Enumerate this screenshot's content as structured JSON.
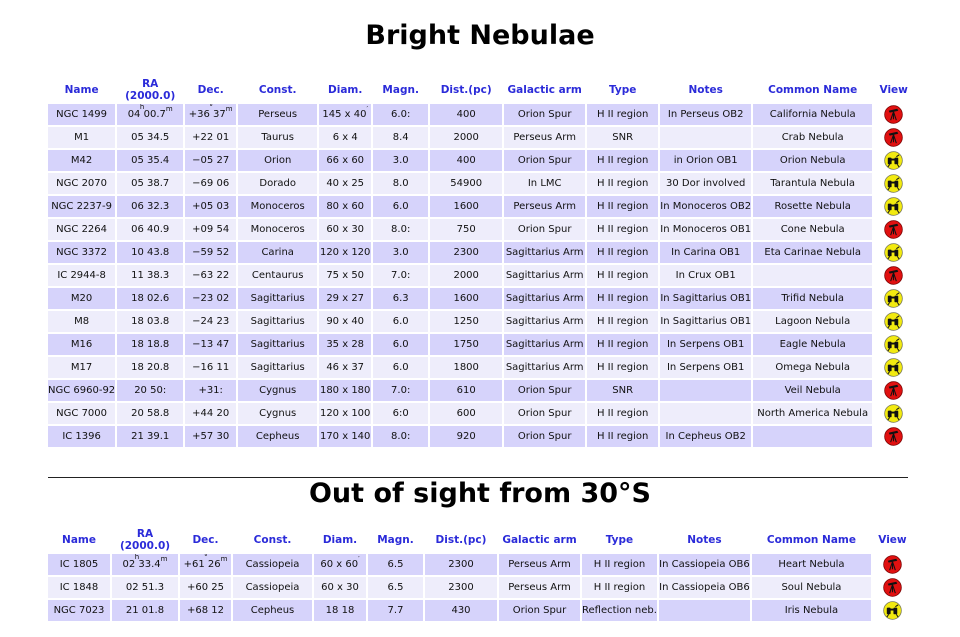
{
  "title_main": "Bright Nebulae",
  "title_secondary": "Out of sight from 30°S",
  "columns": [
    "Name",
    "RA (2000.0)",
    "Dec.",
    "Const.",
    "Diam.",
    "Magn.",
    "Dist.(pc)",
    "Galactic arm",
    "Type",
    "Notes",
    "Common Name",
    "View"
  ],
  "units": {
    "ra_h": "h",
    "ra_m": "m",
    "dec_d": "°",
    "dec_m": "m",
    "diam": "′"
  },
  "colors": {
    "header": "#2b2bd9",
    "row_odd": "#d6d3fb",
    "row_even": "#eeedfb",
    "telescope": "#e01010",
    "binoculars": "#f2ea10"
  },
  "bright_nebulae": [
    {
      "name": "NGC 1499",
      "ra": "04 00.7",
      "dec": "+36 37",
      "const": "Perseus",
      "diam": "145 x 40",
      "magn": "6.0:",
      "dist": "400",
      "arm": "Orion Spur",
      "type": "H II region",
      "notes": "In Perseus OB2",
      "common": "California Nebula",
      "view": "telescope-icon"
    },
    {
      "name": "M1",
      "ra": "05 34.5",
      "dec": "+22 01",
      "const": "Taurus",
      "diam": "6 x 4",
      "magn": "8.4",
      "dist": "2000",
      "arm": "Perseus Arm",
      "type": "SNR",
      "notes": "",
      "common": "Crab Nebula",
      "view": "telescope-icon"
    },
    {
      "name": "M42",
      "ra": "05 35.4",
      "dec": "−05 27",
      "const": "Orion",
      "diam": "66 x 60",
      "magn": "3.0",
      "dist": "400",
      "arm": "Orion Spur",
      "type": "H II region",
      "notes": "in Orion OB1",
      "common": "Orion Nebula",
      "view": "binoculars-icon"
    },
    {
      "name": "NGC 2070",
      "ra": "05 38.7",
      "dec": "−69 06",
      "const": "Dorado",
      "diam": "40 x 25",
      "magn": "8.0",
      "dist": "54900",
      "arm": "In LMC",
      "type": "H II region",
      "notes": "30 Dor involved",
      "common": "Tarantula Nebula",
      "view": "binoculars-icon"
    },
    {
      "name": "NGC 2237-9",
      "ra": "06 32.3",
      "dec": "+05 03",
      "const": "Monoceros",
      "diam": "80 x 60",
      "magn": "6.0",
      "dist": "1600",
      "arm": "Perseus Arm",
      "type": "H II region",
      "notes": "In Monoceros OB2",
      "common": "Rosette Nebula",
      "view": "binoculars-icon"
    },
    {
      "name": "NGC 2264",
      "ra": "06 40.9",
      "dec": "+09 54",
      "const": "Monoceros",
      "diam": "60 x 30",
      "magn": "8.0:",
      "dist": "750",
      "arm": "Orion Spur",
      "type": "H II region",
      "notes": "In Monoceros OB1",
      "common": "Cone Nebula",
      "view": "telescope-icon"
    },
    {
      "name": "NGC 3372",
      "ra": "10 43.8",
      "dec": "−59 52",
      "const": "Carina",
      "diam": "120 x 120",
      "magn": "3.0",
      "dist": "2300",
      "arm": "Sagittarius Arm",
      "type": "H II region",
      "notes": "In Carina OB1",
      "common": "Eta Carinae Nebula",
      "view": "binoculars-icon"
    },
    {
      "name": "IC 2944-8",
      "ra": "11 38.3",
      "dec": "−63 22",
      "const": "Centaurus",
      "diam": "75 x 50",
      "magn": "7.0:",
      "dist": "2000",
      "arm": "Sagittarius Arm",
      "type": "H II region",
      "notes": "In Crux OB1",
      "common": "",
      "view": "telescope-icon"
    },
    {
      "name": "M20",
      "ra": "18 02.6",
      "dec": "−23 02",
      "const": "Sagittarius",
      "diam": "29 x 27",
      "magn": "6.3",
      "dist": "1600",
      "arm": "Sagittarius Arm",
      "type": "H II region",
      "notes": "In Sagittarius OB1",
      "common": "Trifid Nebula",
      "view": "binoculars-icon"
    },
    {
      "name": "M8",
      "ra": "18 03.8",
      "dec": "−24 23",
      "const": "Sagittarius",
      "diam": "90 x 40",
      "magn": "6.0",
      "dist": "1250",
      "arm": "Sagittarius Arm",
      "type": "H II region",
      "notes": "In Sagittarius OB1",
      "common": "Lagoon Nebula",
      "view": "binoculars-icon"
    },
    {
      "name": "M16",
      "ra": "18 18.8",
      "dec": "−13 47",
      "const": "Sagittarius",
      "diam": "35 x 28",
      "magn": "6.0",
      "dist": "1750",
      "arm": "Sagittarius Arm",
      "type": "H II region",
      "notes": "In Serpens OB1",
      "common": "Eagle Nebula",
      "view": "binoculars-icon"
    },
    {
      "name": "M17",
      "ra": "18 20.8",
      "dec": "−16 11",
      "const": "Sagittarius",
      "diam": "46 x 37",
      "magn": "6.0",
      "dist": "1800",
      "arm": "Sagittarius Arm",
      "type": "H II region",
      "notes": "In Serpens OB1",
      "common": "Omega Nebula",
      "view": "binoculars-icon"
    },
    {
      "name": "NGC 6960-92",
      "ra": "20 50:",
      "dec": "+31:",
      "const": "Cygnus",
      "diam": "180 x 180",
      "magn": "7.0:",
      "dist": "610",
      "arm": "Orion Spur",
      "type": "SNR",
      "notes": "",
      "common": "Veil Nebula",
      "view": "telescope-icon"
    },
    {
      "name": "NGC 7000",
      "ra": "20 58.8",
      "dec": "+44 20",
      "const": "Cygnus",
      "diam": "120 x 100",
      "magn": "6:0",
      "dist": "600",
      "arm": "Orion Spur",
      "type": "H II region",
      "notes": "",
      "common": "North America Nebula",
      "view": "binoculars-icon"
    },
    {
      "name": "IC 1396",
      "ra": "21 39.1",
      "dec": "+57 30",
      "const": "Cepheus",
      "diam": "170 x 140",
      "magn": "8.0:",
      "dist": "920",
      "arm": "Orion Spur",
      "type": "H II region",
      "notes": "In Cepheus OB2",
      "common": "",
      "view": "telescope-icon"
    }
  ],
  "out_of_sight": [
    {
      "name": "IC 1805",
      "ra": "02 33.4",
      "dec": "+61 26",
      "const": "Cassiopeia",
      "diam": "60 x 60",
      "magn": "6.5",
      "dist": "2300",
      "arm": "Perseus Arm",
      "type": "H II region",
      "notes": "In Cassiopeia OB6",
      "common": "Heart Nebula",
      "view": "telescope-icon"
    },
    {
      "name": "IC 1848",
      "ra": "02 51.3",
      "dec": "+60 25",
      "const": "Cassiopeia",
      "diam": "60 x 30",
      "magn": "6.5",
      "dist": "2300",
      "arm": "Perseus Arm",
      "type": "H II region",
      "notes": "In Cassiopeia OB6",
      "common": "Soul Nebula",
      "view": "telescope-icon"
    },
    {
      "name": "NGC 7023",
      "ra": "21 01.8",
      "dec": "+68 12",
      "const": "Cepheus",
      "diam": "18 18",
      "magn": "7.7",
      "dist": "430",
      "arm": "Orion Spur",
      "type": "Reflection neb.",
      "notes": "",
      "common": "Iris Nebula",
      "view": "binoculars-icon"
    }
  ]
}
